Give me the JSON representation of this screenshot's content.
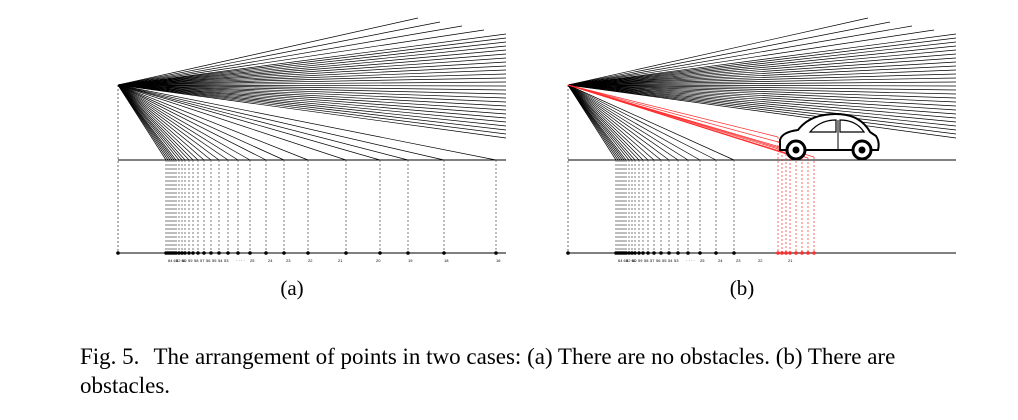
{
  "panels": [
    {
      "id": "a",
      "label": "(a)",
      "obstacle": false,
      "axis_numbers": [
        "64 63",
        "62 61",
        "60",
        "59",
        "58",
        "57",
        "56",
        "55",
        "54",
        "53",
        "· · · ·",
        "25",
        "24",
        "23",
        "22",
        "21",
        "20",
        "19",
        "18",
        "16"
      ]
    },
    {
      "id": "b",
      "label": "(b)",
      "obstacle": true,
      "axis_numbers": [
        "64 63",
        "62 61",
        "60",
        "59",
        "58",
        "57",
        "56",
        "55",
        "54",
        "53",
        "· · · ·",
        "25",
        "24",
        "23",
        "22",
        "21"
      ]
    }
  ],
  "caption": {
    "number": "Fig. 5.",
    "text": "The arrangement of points in two cases: (a) There are no obstacles. (b) There are obstacles."
  },
  "colors": {
    "ray": "#000000",
    "blocked_ray": "#ff2a2a",
    "dotted": "#444444"
  }
}
